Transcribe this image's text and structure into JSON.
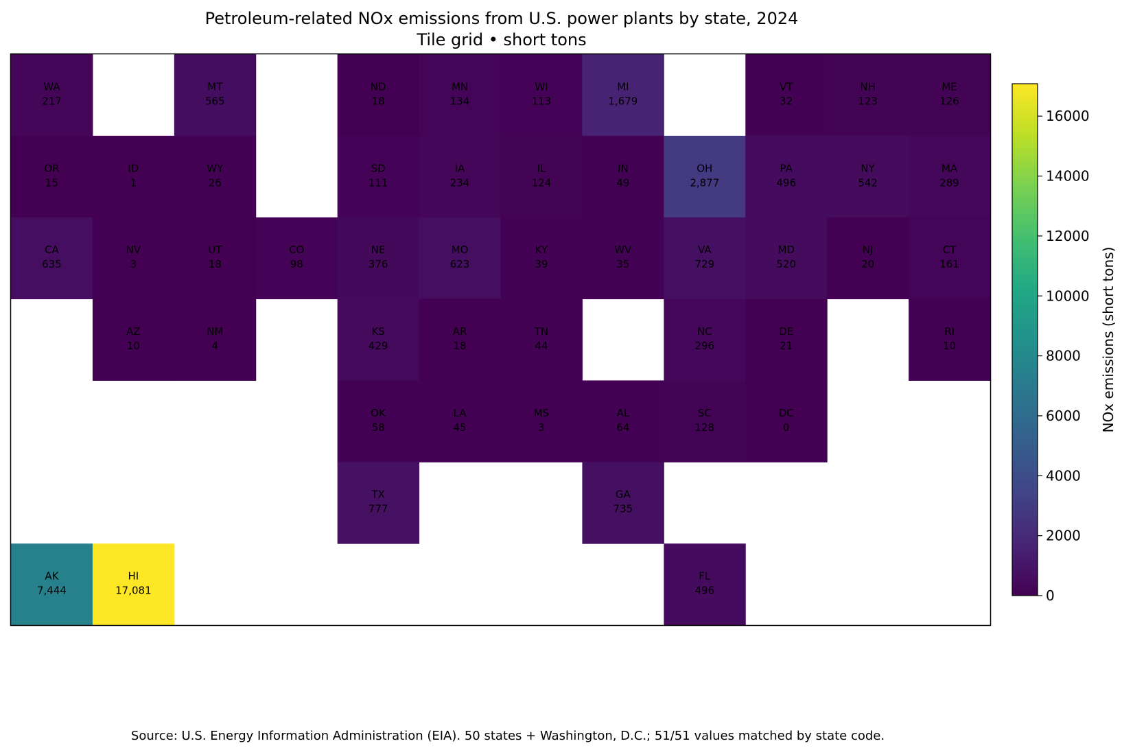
{
  "chart_data": {
    "type": "heatmap",
    "title": "Petroleum-related NOx emissions from U.S. power plants by state, 2024",
    "subtitle": "Tile grid • short tons",
    "colorbar_label": "NOx emissions (short tons)",
    "colorbar_range": [
      0,
      17081
    ],
    "colorbar_ticks": [
      0,
      2000,
      4000,
      6000,
      8000,
      10000,
      12000,
      14000,
      16000
    ],
    "colormap": "viridis",
    "grid_cols": 12,
    "grid_rows": 7,
    "tiles": [
      {
        "state": "WA",
        "value": 217,
        "label": "217",
        "col": 0,
        "row": 0
      },
      {
        "state": "MT",
        "value": 565,
        "label": "565",
        "col": 2,
        "row": 0
      },
      {
        "state": "ND",
        "value": 18,
        "label": "18",
        "col": 4,
        "row": 0
      },
      {
        "state": "MN",
        "value": 134,
        "label": "134",
        "col": 5,
        "row": 0
      },
      {
        "state": "WI",
        "value": 113,
        "label": "113",
        "col": 6,
        "row": 0
      },
      {
        "state": "MI",
        "value": 1679,
        "label": "1,679",
        "col": 7,
        "row": 0
      },
      {
        "state": "VT",
        "value": 32,
        "label": "32",
        "col": 9,
        "row": 0
      },
      {
        "state": "NH",
        "value": 123,
        "label": "123",
        "col": 10,
        "row": 0
      },
      {
        "state": "ME",
        "value": 126,
        "label": "126",
        "col": 11,
        "row": 0
      },
      {
        "state": "OR",
        "value": 15,
        "label": "15",
        "col": 0,
        "row": 1
      },
      {
        "state": "ID",
        "value": 1,
        "label": "1",
        "col": 1,
        "row": 1
      },
      {
        "state": "WY",
        "value": 26,
        "label": "26",
        "col": 2,
        "row": 1
      },
      {
        "state": "SD",
        "value": 111,
        "label": "111",
        "col": 4,
        "row": 1
      },
      {
        "state": "IA",
        "value": 234,
        "label": "234",
        "col": 5,
        "row": 1
      },
      {
        "state": "IL",
        "value": 124,
        "label": "124",
        "col": 6,
        "row": 1
      },
      {
        "state": "IN",
        "value": 49,
        "label": "49",
        "col": 7,
        "row": 1
      },
      {
        "state": "OH",
        "value": 2877,
        "label": "2,877",
        "col": 8,
        "row": 1
      },
      {
        "state": "PA",
        "value": 496,
        "label": "496",
        "col": 9,
        "row": 1
      },
      {
        "state": "NY",
        "value": 542,
        "label": "542",
        "col": 10,
        "row": 1
      },
      {
        "state": "MA",
        "value": 289,
        "label": "289",
        "col": 11,
        "row": 1
      },
      {
        "state": "CA",
        "value": 635,
        "label": "635",
        "col": 0,
        "row": 2
      },
      {
        "state": "NV",
        "value": 3,
        "label": "3",
        "col": 1,
        "row": 2
      },
      {
        "state": "UT",
        "value": 18,
        "label": "18",
        "col": 2,
        "row": 2
      },
      {
        "state": "CO",
        "value": 98,
        "label": "98",
        "col": 3,
        "row": 2
      },
      {
        "state": "NE",
        "value": 376,
        "label": "376",
        "col": 4,
        "row": 2
      },
      {
        "state": "MO",
        "value": 623,
        "label": "623",
        "col": 5,
        "row": 2
      },
      {
        "state": "KY",
        "value": 39,
        "label": "39",
        "col": 6,
        "row": 2
      },
      {
        "state": "WV",
        "value": 35,
        "label": "35",
        "col": 7,
        "row": 2
      },
      {
        "state": "VA",
        "value": 729,
        "label": "729",
        "col": 8,
        "row": 2
      },
      {
        "state": "MD",
        "value": 520,
        "label": "520",
        "col": 9,
        "row": 2
      },
      {
        "state": "NJ",
        "value": 20,
        "label": "20",
        "col": 10,
        "row": 2
      },
      {
        "state": "CT",
        "value": 161,
        "label": "161",
        "col": 11,
        "row": 2
      },
      {
        "state": "AZ",
        "value": 10,
        "label": "10",
        "col": 1,
        "row": 3
      },
      {
        "state": "NM",
        "value": 4,
        "label": "4",
        "col": 2,
        "row": 3
      },
      {
        "state": "KS",
        "value": 429,
        "label": "429",
        "col": 4,
        "row": 3
      },
      {
        "state": "AR",
        "value": 18,
        "label": "18",
        "col": 5,
        "row": 3
      },
      {
        "state": "TN",
        "value": 44,
        "label": "44",
        "col": 6,
        "row": 3
      },
      {
        "state": "NC",
        "value": 296,
        "label": "296",
        "col": 8,
        "row": 3
      },
      {
        "state": "DE",
        "value": 21,
        "label": "21",
        "col": 9,
        "row": 3
      },
      {
        "state": "RI",
        "value": 10,
        "label": "10",
        "col": 11,
        "row": 3
      },
      {
        "state": "OK",
        "value": 58,
        "label": "58",
        "col": 4,
        "row": 4
      },
      {
        "state": "LA",
        "value": 45,
        "label": "45",
        "col": 5,
        "row": 4
      },
      {
        "state": "MS",
        "value": 3,
        "label": "3",
        "col": 6,
        "row": 4
      },
      {
        "state": "AL",
        "value": 64,
        "label": "64",
        "col": 7,
        "row": 4
      },
      {
        "state": "SC",
        "value": 128,
        "label": "128",
        "col": 8,
        "row": 4
      },
      {
        "state": "DC",
        "value": 0,
        "label": "0",
        "col": 9,
        "row": 4
      },
      {
        "state": "TX",
        "value": 777,
        "label": "777",
        "col": 4,
        "row": 5
      },
      {
        "state": "GA",
        "value": 735,
        "label": "735",
        "col": 7,
        "row": 5
      },
      {
        "state": "AK",
        "value": 7444,
        "label": "7,444",
        "col": 0,
        "row": 6
      },
      {
        "state": "HI",
        "value": 17081,
        "label": "17,081",
        "col": 1,
        "row": 6
      },
      {
        "state": "FL",
        "value": 496,
        "label": "496",
        "col": 8,
        "row": 6
      }
    ],
    "source": "Source: U.S. Energy Information Administration (EIA). 50 states + Washington, D.C.; 51/51 values matched by state code."
  }
}
